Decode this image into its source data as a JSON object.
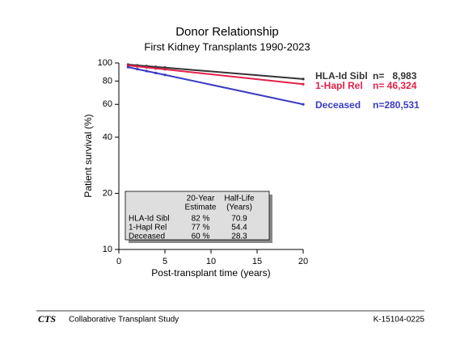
{
  "chart_data": {
    "type": "line",
    "title": "Donor Relationship",
    "subtitle": "First Kidney Transplants 1990-2023",
    "x_label": "Post-transplant time (years)",
    "y_label": "Patient survival (%)",
    "log_y": true,
    "x": [
      1,
      2,
      3,
      4,
      5,
      20
    ],
    "series": [
      {
        "name": "HLA-Id Sibl",
        "n": "n=   8,983",
        "color": "#333333",
        "values": [
          98,
          97.1,
          96.2,
          95.3,
          94.4,
          82
        ]
      },
      {
        "name": "1-Hapl Rel",
        "n": "n= 46,324",
        "color": "#e0204a",
        "values": [
          97,
          95.8,
          94.7,
          93.5,
          92.4,
          77
        ]
      },
      {
        "name": "Deceased",
        "n": "n=280,531",
        "color": "#3a3ac4",
        "values": [
          95,
          92.7,
          90.5,
          88.4,
          86.3,
          60
        ]
      }
    ],
    "xlim": [
      0,
      20
    ],
    "xticks": [
      0,
      5,
      10,
      15,
      20
    ],
    "ylim": [
      10,
      100
    ],
    "yticks": [
      10,
      20,
      40,
      60,
      80,
      100
    ],
    "table": {
      "columns": [
        [
          "20-Year",
          "Estimate"
        ],
        [
          "Half-Life",
          "(Years)"
        ]
      ],
      "rows": [
        [
          "HLA-Id Sibl",
          "82 %",
          "70.9"
        ],
        [
          "1-Hapl Rel",
          "77 %",
          "54.4"
        ],
        [
          "Deceased",
          "60 %",
          "28.3"
        ]
      ]
    }
  },
  "footer": {
    "logo": "CTS",
    "name": "Collaborative Transplant Study",
    "code": "K-15104-0225"
  }
}
